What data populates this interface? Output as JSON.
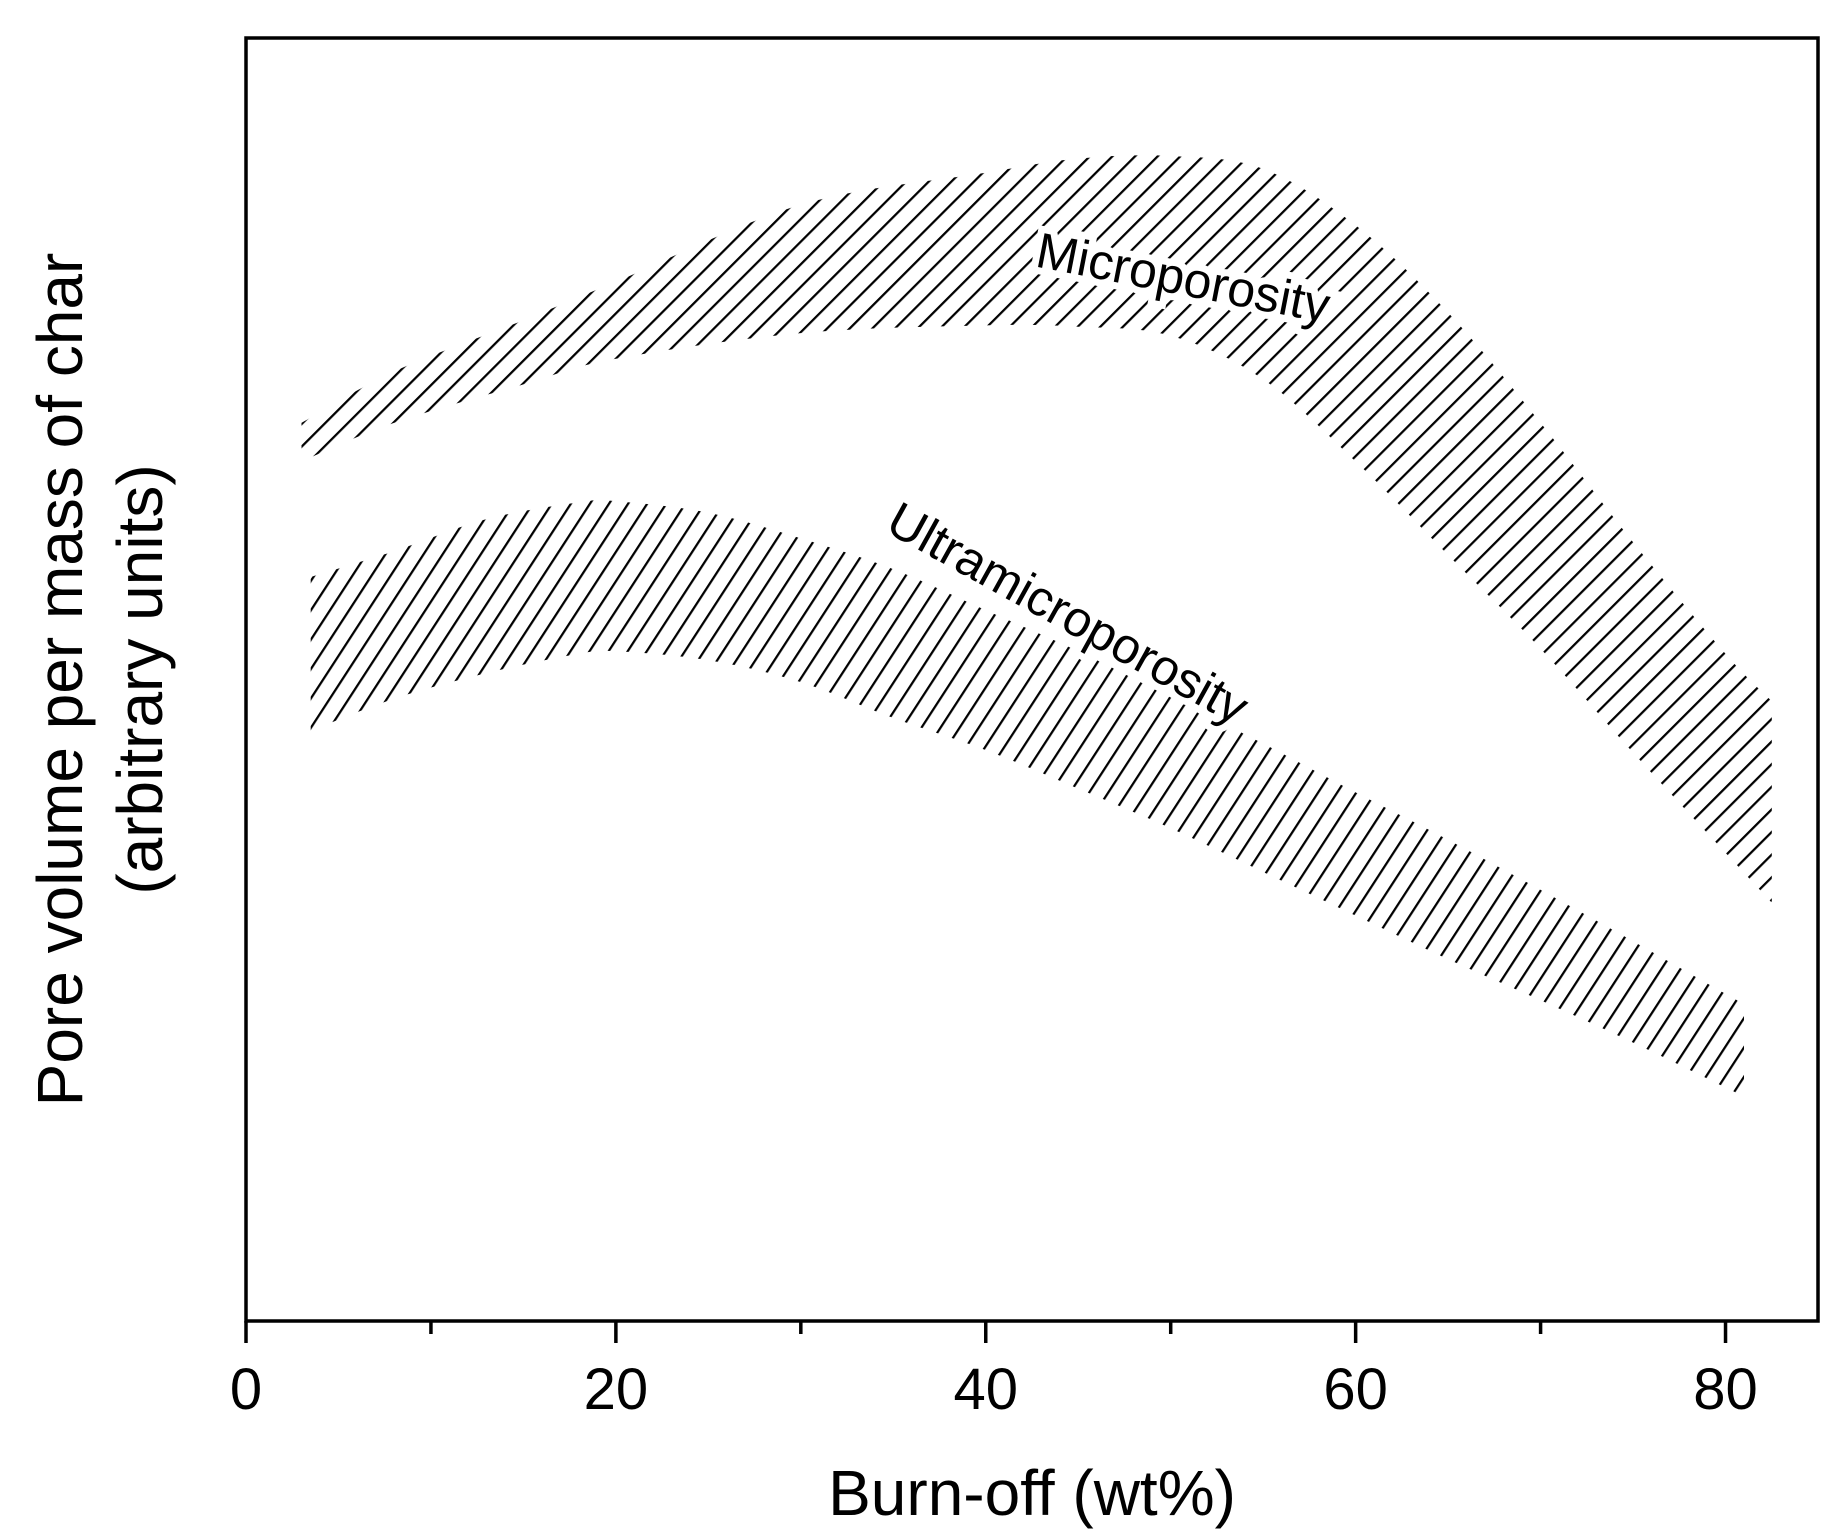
{
  "chart_data": {
    "type": "area",
    "title": "",
    "xlabel": "Burn-off (wt%)",
    "ylabel_line1": "Pore volume per mass of char",
    "ylabel_line2": "(arbitrary units)",
    "xlim": [
      0,
      85
    ],
    "ylim": [
      0,
      100
    ],
    "x_ticks": [
      0,
      20,
      40,
      60,
      80
    ],
    "x_tick_labels": [
      "0",
      "20",
      "40",
      "60",
      "80"
    ],
    "x_minor_ticks": [
      10,
      30,
      50,
      70
    ],
    "y_ticks": [],
    "grid": false,
    "legend": "none",
    "series": [
      {
        "name": "Microporosity",
        "pattern": "hatch-diagonal",
        "x": [
          3,
          8,
          15,
          20,
          30,
          40,
          45,
          50,
          55,
          60,
          65,
          70,
          75,
          80,
          82.5
        ],
        "upper": [
          70,
          74,
          78,
          81,
          87,
          89.5,
          90.6,
          90.8,
          89.8,
          85.4,
          78.6,
          70,
          60.7,
          52,
          48.3
        ],
        "lower": [
          67,
          70,
          73,
          75,
          77,
          77.6,
          77.5,
          76.8,
          73.4,
          67,
          59.7,
          52.4,
          44.3,
          36.5,
          32.6
        ]
      },
      {
        "name": "Ultramicroporosity",
        "pattern": "hatch-vertical",
        "x": [
          3.5,
          8,
          13,
          18,
          20,
          25,
          30,
          35,
          40,
          45,
          50,
          55,
          60,
          65,
          70,
          75,
          80,
          81
        ],
        "upper": [
          58,
          60,
          62.5,
          63.8,
          63.9,
          63,
          61,
          58.6,
          55.4,
          52.2,
          48.6,
          45,
          41.2,
          37.5,
          33.6,
          29.6,
          25.5,
          24.7
        ],
        "lower": [
          46,
          48.5,
          50.5,
          52,
          52.2,
          51.5,
          49.8,
          47,
          44.5,
          41.5,
          38.4,
          35,
          31.6,
          28.2,
          25,
          21.7,
          18.2,
          17.5
        ]
      }
    ],
    "annotations": [
      {
        "text": "Microporosity",
        "x": 50.5,
        "y": 80,
        "angle": 11
      },
      {
        "text": "Ultramicroporosity",
        "x": 44,
        "y": 54,
        "angle": 29
      }
    ]
  }
}
